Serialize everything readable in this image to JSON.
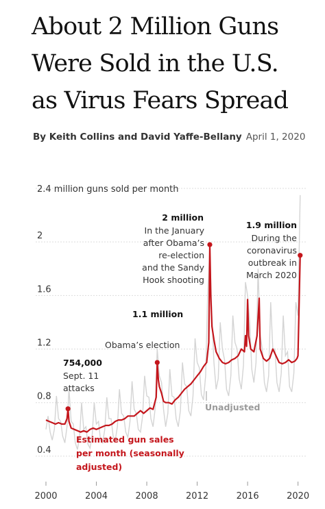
{
  "headline": {
    "line1": "About 2 Million Guns",
    "line2": "Were Sold in the U.S.",
    "line3": "as Virus Fears Spread"
  },
  "byline": {
    "authors": "By Keith Collins and David Yaffe-Bellany",
    "date": "April 1, 2020"
  },
  "chart_data": {
    "type": "line",
    "ylabel": "2.4 million guns sold per month",
    "ylim": [
      0.2,
      2.4
    ],
    "xlim": [
      2000,
      2020.4
    ],
    "y_ticks": [
      {
        "value": 0.4,
        "label": "0.4"
      },
      {
        "value": 0.8,
        "label": "0.8"
      },
      {
        "value": 1.2,
        "label": "1.2"
      },
      {
        "value": 1.6,
        "label": "1.6"
      },
      {
        "value": 2.0,
        "label": "2"
      }
    ],
    "x_ticks": [
      {
        "value": 2000,
        "label": "2000"
      },
      {
        "value": 2004,
        "label": "2004"
      },
      {
        "value": 2008,
        "label": "2008"
      },
      {
        "value": 2012,
        "label": "2012"
      },
      {
        "value": 2016,
        "label": "2016"
      },
      {
        "value": 2020,
        "label": "2020"
      }
    ],
    "grid": "horizontal-dashed",
    "series": [
      {
        "name": "Estimated gun sales per month (seasonally adjusted)",
        "color": "#c4161c",
        "x": [
          2000.0,
          2000.25,
          2000.5,
          2000.75,
          2001.0,
          2001.25,
          2001.5,
          2001.67,
          2001.75,
          2001.83,
          2002.0,
          2002.25,
          2002.5,
          2002.75,
          2003.0,
          2003.25,
          2003.5,
          2003.75,
          2004.0,
          2004.25,
          2004.5,
          2004.75,
          2005.0,
          2005.25,
          2005.5,
          2005.75,
          2006.0,
          2006.25,
          2006.5,
          2006.75,
          2007.0,
          2007.25,
          2007.5,
          2007.75,
          2008.0,
          2008.25,
          2008.5,
          2008.75,
          2008.83,
          2008.92,
          2009.0,
          2009.17,
          2009.33,
          2009.5,
          2009.75,
          2010.0,
          2010.25,
          2010.5,
          2010.75,
          2011.0,
          2011.25,
          2011.5,
          2011.75,
          2012.0,
          2012.25,
          2012.5,
          2012.75,
          2012.92,
          2013.0,
          2013.08,
          2013.17,
          2013.33,
          2013.5,
          2013.75,
          2014.0,
          2014.25,
          2014.5,
          2014.75,
          2015.0,
          2015.25,
          2015.5,
          2015.75,
          2015.83,
          2015.92,
          2016.0,
          2016.08,
          2016.25,
          2016.5,
          2016.75,
          2016.92,
          2017.0,
          2017.25,
          2017.5,
          2017.75,
          2018.0,
          2018.25,
          2018.5,
          2018.75,
          2019.0,
          2019.25,
          2019.5,
          2019.75,
          2019.92,
          2020.0,
          2020.08,
          2020.17
        ],
        "values": [
          0.67,
          0.66,
          0.65,
          0.64,
          0.65,
          0.64,
          0.64,
          0.68,
          0.754,
          0.66,
          0.61,
          0.6,
          0.59,
          0.58,
          0.59,
          0.58,
          0.6,
          0.61,
          0.6,
          0.61,
          0.62,
          0.63,
          0.63,
          0.64,
          0.66,
          0.67,
          0.67,
          0.68,
          0.7,
          0.7,
          0.7,
          0.72,
          0.74,
          0.72,
          0.74,
          0.76,
          0.75,
          0.84,
          1.1,
          0.97,
          0.92,
          0.87,
          0.81,
          0.8,
          0.8,
          0.79,
          0.82,
          0.84,
          0.87,
          0.9,
          0.92,
          0.94,
          0.97,
          1.0,
          1.03,
          1.07,
          1.1,
          1.25,
          1.98,
          1.6,
          1.37,
          1.27,
          1.18,
          1.13,
          1.1,
          1.09,
          1.1,
          1.12,
          1.13,
          1.15,
          1.2,
          1.18,
          1.3,
          1.22,
          1.57,
          1.3,
          1.2,
          1.18,
          1.3,
          1.58,
          1.2,
          1.13,
          1.11,
          1.13,
          1.2,
          1.15,
          1.1,
          1.09,
          1.1,
          1.12,
          1.1,
          1.11,
          1.13,
          1.15,
          1.5,
          1.9
        ]
      },
      {
        "name": "Unadjusted",
        "color": "#d4d4d4",
        "x": [
          2000.0,
          2000.17,
          2000.33,
          2000.5,
          2000.67,
          2000.83,
          2001.0,
          2001.17,
          2001.33,
          2001.5,
          2001.67,
          2001.83,
          2002.0,
          2002.17,
          2002.33,
          2002.5,
          2002.67,
          2002.83,
          2003.0,
          2003.17,
          2003.33,
          2003.5,
          2003.67,
          2003.83,
          2004.0,
          2004.17,
          2004.33,
          2004.5,
          2004.67,
          2004.83,
          2005.0,
          2005.17,
          2005.33,
          2005.5,
          2005.67,
          2005.83,
          2006.0,
          2006.17,
          2006.33,
          2006.5,
          2006.67,
          2006.83,
          2007.0,
          2007.17,
          2007.33,
          2007.5,
          2007.67,
          2007.83,
          2008.0,
          2008.17,
          2008.33,
          2008.5,
          2008.67,
          2008.83,
          2009.0,
          2009.17,
          2009.33,
          2009.5,
          2009.67,
          2009.83,
          2010.0,
          2010.17,
          2010.33,
          2010.5,
          2010.67,
          2010.83,
          2011.0,
          2011.17,
          2011.33,
          2011.5,
          2011.67,
          2011.83,
          2012.0,
          2012.17,
          2012.33,
          2012.5,
          2012.67,
          2012.83,
          2013.0,
          2013.17,
          2013.33,
          2013.5,
          2013.67,
          2013.83,
          2014.0,
          2014.17,
          2014.33,
          2014.5,
          2014.67,
          2014.83,
          2015.0,
          2015.17,
          2015.33,
          2015.5,
          2015.67,
          2015.83,
          2016.0,
          2016.17,
          2016.33,
          2016.5,
          2016.67,
          2016.83,
          2017.0,
          2017.17,
          2017.33,
          2017.5,
          2017.67,
          2017.83,
          2018.0,
          2018.17,
          2018.33,
          2018.5,
          2018.67,
          2018.83,
          2019.0,
          2019.17,
          2019.33,
          2019.5,
          2019.67,
          2019.83,
          2020.0,
          2020.17
        ],
        "values": [
          0.6,
          0.7,
          0.58,
          0.52,
          0.6,
          0.85,
          0.68,
          0.66,
          0.55,
          0.5,
          0.62,
          0.9,
          0.66,
          0.64,
          0.5,
          0.45,
          0.55,
          0.8,
          0.6,
          0.62,
          0.49,
          0.46,
          0.56,
          0.8,
          0.64,
          0.66,
          0.52,
          0.5,
          0.6,
          0.84,
          0.68,
          0.68,
          0.55,
          0.52,
          0.62,
          0.9,
          0.72,
          0.7,
          0.58,
          0.54,
          0.66,
          0.96,
          0.75,
          0.72,
          0.6,
          0.58,
          0.7,
          1.0,
          0.85,
          0.84,
          0.68,
          0.62,
          0.76,
          1.2,
          1.0,
          0.95,
          0.75,
          0.62,
          0.72,
          1.05,
          0.85,
          0.84,
          0.68,
          0.62,
          0.74,
          1.1,
          0.94,
          0.92,
          0.74,
          0.7,
          0.85,
          1.28,
          1.1,
          1.06,
          0.86,
          0.82,
          1.0,
          1.6,
          1.95,
          1.45,
          1.1,
          0.9,
          0.98,
          1.4,
          1.2,
          1.12,
          0.9,
          0.85,
          1.0,
          1.45,
          1.25,
          1.2,
          0.98,
          0.9,
          1.08,
          1.7,
          1.6,
          1.4,
          1.05,
          0.95,
          1.1,
          1.8,
          1.3,
          1.2,
          0.95,
          0.88,
          1.0,
          1.55,
          1.2,
          1.2,
          0.95,
          0.88,
          1.02,
          1.45,
          1.15,
          1.18,
          0.92,
          0.88,
          1.02,
          1.55,
          1.45,
          2.35
        ]
      }
    ],
    "annotations": [
      {
        "value_label": "754,000",
        "text": [
          "Sept. 11",
          "attacks"
        ],
        "x": 2001.75,
        "y": 0.754
      },
      {
        "value_label": "1.1 million",
        "text": [
          "Obama’s election"
        ],
        "x": 2008.83,
        "y": 1.1
      },
      {
        "value_label": "2 million",
        "text": [
          "In the January",
          "after Obama’s",
          "re-election",
          "and the Sandy",
          "Hook shooting"
        ],
        "x": 2013.0,
        "y": 1.98
      },
      {
        "value_label": "1.9 million",
        "text": [
          "During the",
          "coronavirus",
          "outbreak in",
          "March 2020"
        ],
        "x": 2020.17,
        "y": 1.9
      }
    ],
    "series_labels": {
      "adjusted": [
        "Estimated gun sales",
        "per month (seasonally",
        "adjusted)"
      ],
      "unadjusted": "Unadjusted"
    }
  }
}
